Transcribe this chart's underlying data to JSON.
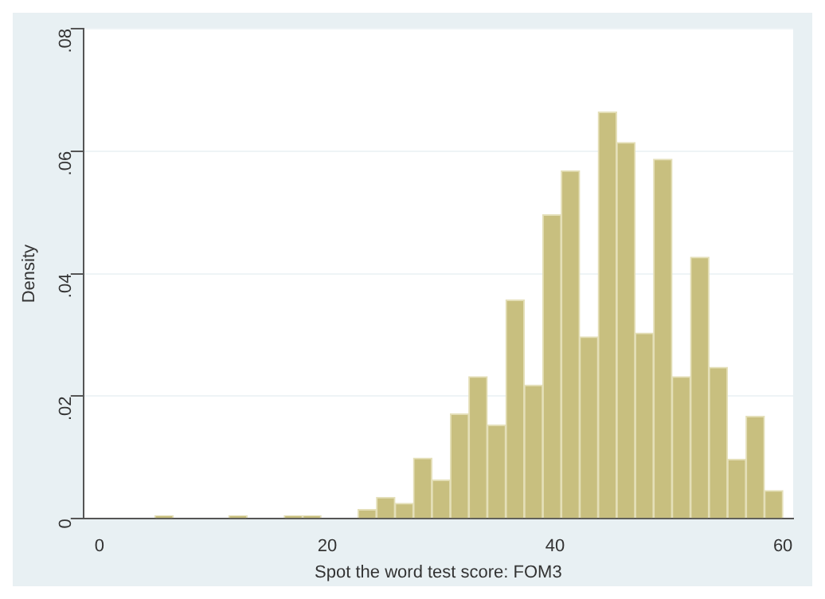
{
  "chart_data": {
    "type": "histogram",
    "xlabel": "Spot the word test score: FOM3",
    "ylabel": "Density",
    "bins": [
      0,
      1.62,
      3.24,
      4.86,
      6.49,
      8.11,
      9.73,
      11.35,
      12.97,
      14.59,
      16.22,
      17.84,
      19.46,
      21.08,
      22.7,
      24.32,
      25.95,
      27.57,
      29.19,
      30.81,
      32.43,
      34.05,
      35.68,
      37.3,
      38.92,
      40.54,
      42.16,
      43.78,
      45.41,
      47.03,
      48.65,
      50.27,
      51.89,
      53.51,
      55.14,
      56.76,
      58.38,
      60
    ],
    "values": [
      0,
      0,
      0,
      0.0005,
      0,
      0,
      0,
      0.0005,
      0,
      0,
      0.0005,
      0.0005,
      0,
      0,
      0.0015,
      0.0035,
      0.0025,
      0.0099,
      0.0063,
      0.0171,
      0.0232,
      0.0153,
      0.0357,
      0.0218,
      0.0496,
      0.0568,
      0.0297,
      0.0664,
      0.0614,
      0.0303,
      0.0587,
      0.0232,
      0.0427,
      0.0247,
      0.0097,
      0.0167,
      0.0046
    ],
    "color": "#c8bf7f",
    "xlim": [
      -1.4,
      60.9
    ],
    "xticks": [
      0,
      20,
      40,
      60
    ],
    "ylim": [
      0,
      0.08
    ],
    "yticks": [
      0,
      {
        "value": 0.02,
        "label": ".02"
      },
      {
        "value": 0.04,
        "label": ".04"
      },
      {
        "value": 0.06,
        "label": ".06"
      },
      {
        "value": 0.08,
        "label": ".08"
      }
    ],
    "grid": "y"
  }
}
